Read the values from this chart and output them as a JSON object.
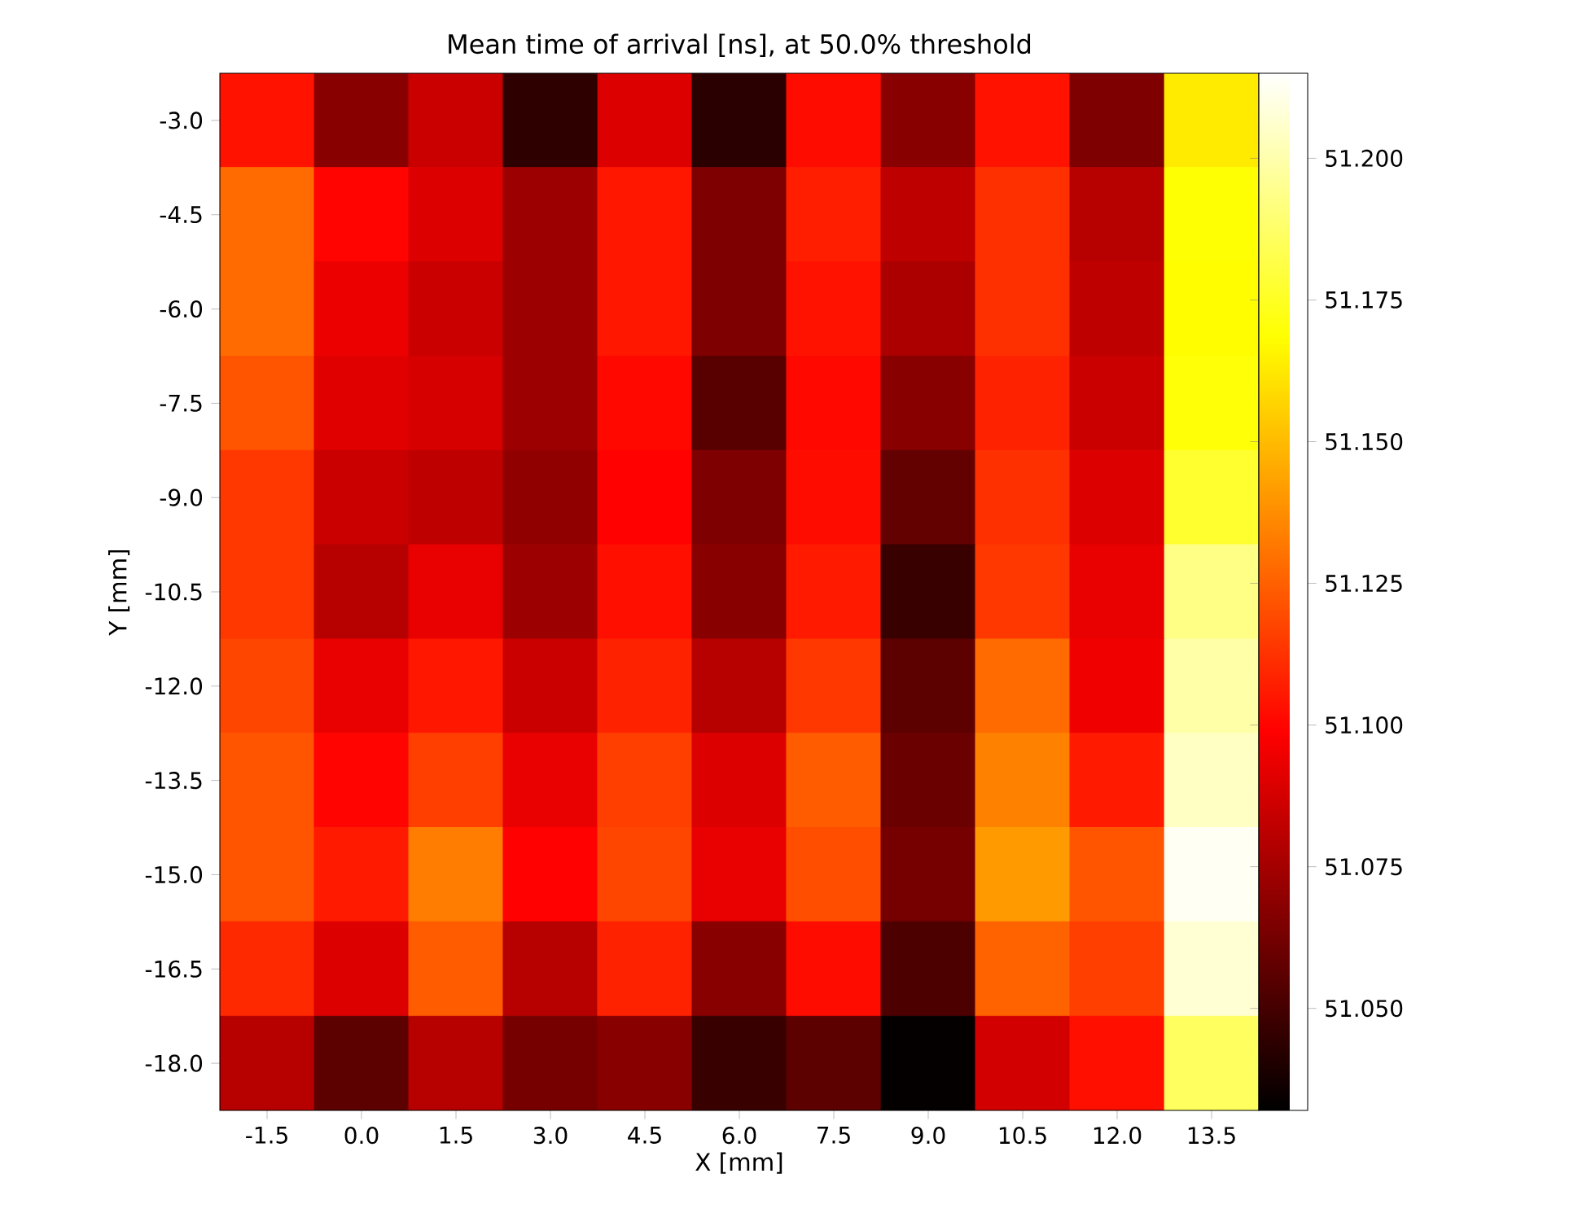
{
  "chart_data": {
    "type": "heatmap",
    "title": "Mean time of arrival [ns],  at 50.0% threshold",
    "xlabel": "X  [mm]",
    "ylabel": "Y [mm]",
    "categories": [
      "-1.5",
      "0.0",
      "1.5",
      "3.0",
      "4.5",
      "6.0",
      "7.5",
      "9.0",
      "10.5",
      "12.0",
      "13.5"
    ],
    "y_categories": [
      "-3.0",
      "-4.5",
      "-6.0",
      "-7.5",
      "-9.0",
      "-10.5",
      "-12.0",
      "-13.5",
      "-15.0",
      "-16.5",
      "-18.0"
    ],
    "cells": [
      [
        51.104,
        51.068,
        51.085,
        51.044,
        51.09,
        51.043,
        51.102,
        51.068,
        51.104,
        51.065,
        51.163
      ],
      [
        51.128,
        51.1,
        51.09,
        51.073,
        51.105,
        51.065,
        51.107,
        51.082,
        51.112,
        51.08,
        51.169
      ],
      [
        51.128,
        51.094,
        51.085,
        51.073,
        51.105,
        51.065,
        51.104,
        51.077,
        51.112,
        51.082,
        51.168
      ],
      [
        51.122,
        51.091,
        51.088,
        51.073,
        51.101,
        51.055,
        51.101,
        51.068,
        51.108,
        51.085,
        51.17
      ],
      [
        51.114,
        51.085,
        51.082,
        51.07,
        51.099,
        51.065,
        51.102,
        51.058,
        51.112,
        51.09,
        51.177
      ],
      [
        51.114,
        51.08,
        51.093,
        51.073,
        51.103,
        51.068,
        51.106,
        51.047,
        51.114,
        51.093,
        51.193
      ],
      [
        51.118,
        51.093,
        51.105,
        51.085,
        51.108,
        51.08,
        51.114,
        51.056,
        51.128,
        51.095,
        51.199
      ],
      [
        51.122,
        51.1,
        51.116,
        51.093,
        51.116,
        51.09,
        51.124,
        51.06,
        51.134,
        51.106,
        51.204
      ],
      [
        51.122,
        51.106,
        51.133,
        51.099,
        51.118,
        51.093,
        51.12,
        51.063,
        51.141,
        51.122,
        51.213
      ],
      [
        51.11,
        51.09,
        51.124,
        51.08,
        51.108,
        51.068,
        51.102,
        51.052,
        51.126,
        51.116,
        51.207
      ],
      [
        51.08,
        51.056,
        51.08,
        51.063,
        51.068,
        51.047,
        51.056,
        51.033,
        51.087,
        51.103,
        51.186
      ]
    ],
    "clim": [
      51.032,
      51.215
    ],
    "cticks": [
      {
        "value": 51.05,
        "label": "51.050"
      },
      {
        "value": 51.075,
        "label": "51.075"
      },
      {
        "value": 51.1,
        "label": "51.100"
      },
      {
        "value": 51.125,
        "label": "51.125"
      },
      {
        "value": 51.15,
        "label": "51.150"
      },
      {
        "value": 51.175,
        "label": "51.175"
      },
      {
        "value": 51.2,
        "label": "51.200"
      }
    ]
  }
}
